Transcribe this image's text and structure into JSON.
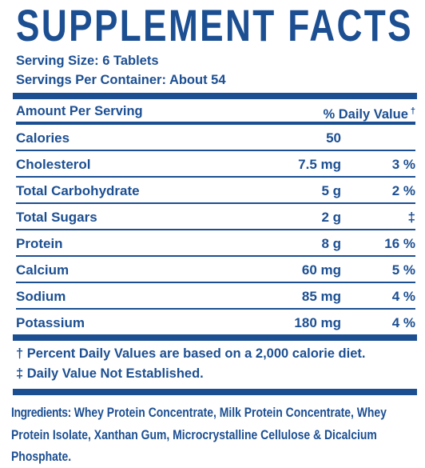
{
  "title": "SUPPLEMENT FACTS",
  "serving_size": "Serving Size: 6 Tablets",
  "servings_per_container": "Servings Per Container: About 54",
  "table": {
    "header": {
      "amount": "Amount Per Serving",
      "daily_value": "% Daily Value",
      "mark": "†"
    },
    "rows": [
      {
        "name": "Calories",
        "amount": "50"
      },
      {
        "name": "Cholesterol",
        "amount": "7.5 mg",
        "dv": "3 %"
      },
      {
        "name": "Total Carbohydrate",
        "amount": "5 g",
        "dv": "2 %"
      },
      {
        "name": "Total Sugars",
        "amount": "2 g",
        "dv": "‡"
      },
      {
        "name": "Protein",
        "amount": "8 g",
        "dv": "16 %"
      },
      {
        "name": "Calcium",
        "amount": "60 mg",
        "dv": "5 %"
      },
      {
        "name": "Sodium",
        "amount": "85 mg",
        "dv": "4 %"
      },
      {
        "name": "Potassium",
        "amount": "180 mg",
        "dv": "4 %"
      }
    ]
  },
  "footnotes": [
    "† Percent Daily Values are based on a 2,000 calorie diet.",
    "‡ Daily Value Not Established."
  ],
  "ingredients": {
    "label": "Ingredients:",
    "text": "Whey Protein Concentrate, Milk Protein Concentrate, Whey Protein Isolate, Xanthan Gum, Microcrystalline Cellulose & Dicalcium Phosphate."
  }
}
